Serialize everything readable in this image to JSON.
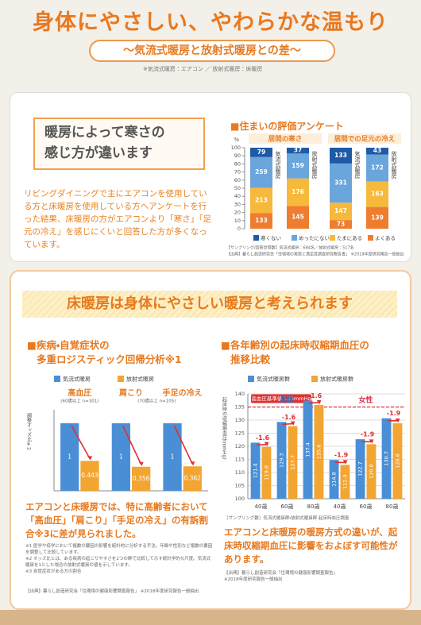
{
  "header": {
    "title": "身体にやさしい、やわらかな温もり",
    "subtitle": "〜気流式暖房と放射式暖房との差〜",
    "note": "※気流式暖房：エアコン ／ 放射式暖房：床暖房"
  },
  "intro": {
    "heading": [
      "暖房によって寒さの",
      "感じ方が違います"
    ],
    "body": "リビングダイニングで主にエアコンを使用している方と床暖房を使用している方へアンケートを行った結果、床暖房の方がエアコンより「寒さ」「足元の冷え」を感じにくいと回答した方が多くなっています。"
  },
  "health": {
    "heading": "床暖房は身体にやさしい暖房と考えられます",
    "left_text": "エアコンと床暖房では、特に高齢者において「高血圧」「肩こり」「手足の冷え」の有訴割合※3に差が見られました。",
    "footnotes": [
      "※1 医学や疫学において複数の要因の影響を統計的に分析する手法。年齢や性別など複数の要因を調整して比較しています。",
      "※2 オッズ比とは、ある疾病の起こりやすさを2つの群で比較して示す統計学的な尺度。気流式暖房を1とした場合の放射式暖房の値を示しています。",
      "※3 自覚症状がある方の割合"
    ],
    "left_source": "【出典】暮らし創造研究会「住環境の健康影響調査報告」 ※2018年度研究報告一般抽出",
    "right_note": "［サンプリング数］気流式暖房群・放射式暖房群 起床時血圧調査",
    "right_text": "エアコンと床暖房の暖房方式の違いが、起床時収縮期血圧に影響をおよぼす可能性があります。",
    "right_source": "【出典】暮らし創造研究会「住環境の健康影響調査報告」 ※2018年度研究報告一般抽出"
  },
  "chart_data": [
    {
      "type": "stacked_percent",
      "title": "住まいの評価アンケート",
      "groups": [
        "居間の寒さ",
        "居間での足元の冷え"
      ],
      "categories": [
        "気流式暖房",
        "放射式暖房",
        "気流式暖房",
        "放射式暖房"
      ],
      "ylabel": "%",
      "ylim": [
        0,
        100
      ],
      "yticks": [
        0,
        10,
        20,
        30,
        40,
        50,
        60,
        70,
        80,
        90,
        100
      ],
      "series": [
        {
          "name": "寒くない",
          "color": "#1f5aa6",
          "values": [
            79,
            37,
            133,
            43
          ]
        },
        {
          "name": "めったにない",
          "color": "#6aa5dc",
          "values": [
            259,
            159,
            331,
            172
          ]
        },
        {
          "name": "たまにある",
          "color": "#f6b93b",
          "values": [
            213,
            176,
            147,
            163
          ]
        },
        {
          "name": "よくある",
          "color": "#ee7d2f",
          "values": [
            133,
            145,
            73,
            139
          ]
        }
      ],
      "notes": [
        "【サンプリング/回答世帯数】気流式暖房：684名／放射式暖房：517名",
        "【出典】暮らし創造研究会「住環境の実態と満足度調査研究報告書」 ※2018年度研究報告一般抽出"
      ]
    },
    {
      "type": "bar",
      "title": [
        "疾病・自覚症状の",
        "多重ロジスティック回帰分析※1"
      ],
      "categories": [
        "高血圧",
        "肩こり",
        "手足の冷え"
      ],
      "category_notes": [
        "(60歳以上 n=301)",
        "(70歳以上 n=105)"
      ],
      "ylabel": "調整オッズ比※2",
      "ylim": [
        0,
        1.2
      ],
      "series": [
        {
          "name": "気流式暖房",
          "color": "#4a8fd6",
          "values": [
            1,
            1,
            1
          ]
        },
        {
          "name": "放射式暖房",
          "color": "#f3a531",
          "values": [
            0.443,
            0.356,
            0.362
          ]
        }
      ]
    },
    {
      "type": "bar",
      "title": [
        "各年齢別の起床時収縮期血圧の",
        "推移比較"
      ],
      "groups": [
        "男性",
        "女性"
      ],
      "categories": [
        "40歳",
        "60歳",
        "80歳",
        "40歳",
        "60歳",
        "80歳"
      ],
      "ylabel": "起床時の収縮期血圧(mmHg)",
      "ylim": [
        100,
        140
      ],
      "yticks": [
        100,
        105,
        110,
        115,
        120,
        125,
        130,
        135,
        140
      ],
      "grid": true,
      "reference": {
        "value": 135,
        "label": "高血圧基準値 135mmHg"
      },
      "differences": [
        -1.6,
        -1.6,
        -1.6,
        -1.9,
        -1.9,
        -1.9
      ],
      "series": [
        {
          "name": "気流式暖房群",
          "color": "#4a8fd6",
          "values": [
            121.4,
            129.3,
            137.4,
            114.8,
            122.7,
            130.7
          ]
        },
        {
          "name": "放射式暖房群",
          "color": "#f3a531",
          "values": [
            119.8,
            127.7,
            135.8,
            112.9,
            120.8,
            128.8
          ]
        }
      ]
    }
  ]
}
